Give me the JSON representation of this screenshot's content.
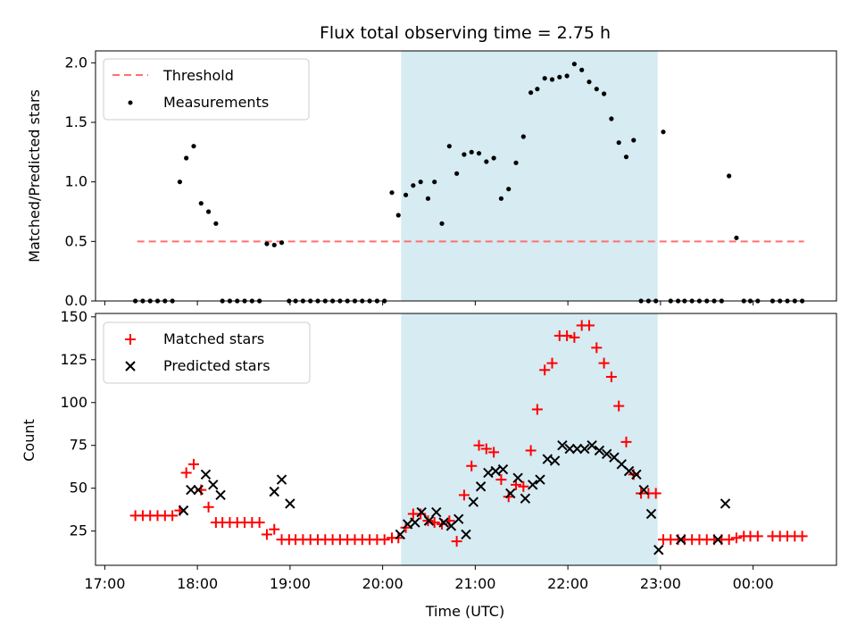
{
  "chart_data": {
    "title": "Flux total observing time = 2.75 h",
    "x_axis": {
      "label": "Time (UTC)",
      "unit": "hours since 17:00 (axis labels show clock time)",
      "range": [
        -0.1,
        7.9
      ],
      "ticks": [
        0,
        1,
        2,
        3,
        4,
        5,
        6,
        7
      ],
      "tick_labels": [
        "17:00",
        "18:00",
        "19:00",
        "20:00",
        "21:00",
        "22:00",
        "23:00",
        "00:00"
      ]
    },
    "shaded_interval": {
      "start": 3.2,
      "end": 5.97,
      "color": "#add8e6"
    },
    "panels": [
      {
        "type": "scatter",
        "ylabel": "Matched/Predicted stars",
        "ylim": [
          0,
          2.1
        ],
        "yticks": [
          0.0,
          0.5,
          1.0,
          1.5,
          2.0
        ],
        "ytick_labels": [
          "0.0",
          "0.5",
          "1.0",
          "1.5",
          "2.0"
        ],
        "legend": {
          "position": "upper left",
          "entries": [
            "Threshold",
            "Measurements"
          ]
        },
        "series": [
          {
            "name": "Threshold",
            "kind": "dashed-line",
            "color": "#ff6f6f",
            "x": [
              0.35,
              7.55
            ],
            "y": [
              0.5,
              0.5
            ]
          },
          {
            "name": "Measurements",
            "kind": "dot",
            "color": "#000000",
            "x": [
              0.33,
              0.41,
              0.49,
              0.57,
              0.65,
              0.73,
              0.81,
              0.88,
              0.96,
              1.04,
              1.12,
              1.2,
              1.27,
              1.35,
              1.43,
              1.51,
              1.59,
              1.67,
              1.75,
              1.83,
              1.91,
              1.99,
              2.06,
              2.14,
              2.22,
              2.3,
              2.38,
              2.46,
              2.54,
              2.62,
              2.7,
              2.78,
              2.86,
              2.94,
              3.02,
              3.1,
              3.17,
              3.25,
              3.33,
              3.41,
              3.49,
              3.56,
              3.64,
              3.72,
              3.8,
              3.88,
              3.96,
              4.04,
              4.12,
              4.2,
              4.28,
              4.36,
              4.44,
              4.52,
              4.6,
              4.67,
              4.75,
              4.83,
              4.91,
              4.99,
              5.07,
              5.15,
              5.23,
              5.31,
              5.39,
              5.47,
              5.55,
              5.63,
              5.71,
              5.79,
              5.87,
              5.95,
              6.03,
              6.11,
              6.19,
              6.26,
              6.34,
              6.42,
              6.5,
              6.58,
              6.66,
              6.74,
              6.82,
              6.9,
              6.97,
              7.05,
              7.21,
              7.29,
              7.37,
              7.45,
              7.53
            ],
            "y": [
              0,
              0,
              0,
              0,
              0,
              0,
              1.0,
              1.2,
              1.3,
              0.82,
              0.75,
              0.65,
              0,
              0,
              0,
              0,
              0,
              0,
              0.48,
              0.47,
              0.49,
              0,
              0,
              0,
              0,
              0,
              0,
              0,
              0,
              0,
              0,
              0,
              0,
              0,
              0,
              0.91,
              0.72,
              0.89,
              0.97,
              1.0,
              0.86,
              1.0,
              0.65,
              1.3,
              1.07,
              1.23,
              1.25,
              1.24,
              1.17,
              1.2,
              0.86,
              0.94,
              1.16,
              1.38,
              1.75,
              1.78,
              1.87,
              1.86,
              1.88,
              1.89,
              1.99,
              1.94,
              1.84,
              1.78,
              1.74,
              1.53,
              1.33,
              1.21,
              1.35,
              0,
              0,
              0,
              1.42,
              0,
              0,
              0,
              0,
              0,
              0,
              0,
              0,
              1.05,
              0.53,
              0,
              0,
              0,
              0,
              0,
              0,
              0,
              0
            ]
          }
        ]
      },
      {
        "type": "scatter",
        "ylabel": "Count",
        "ylim": [
          5,
          152
        ],
        "yticks": [
          25,
          50,
          75,
          100,
          125,
          150
        ],
        "ytick_labels": [
          "25",
          "50",
          "75",
          "100",
          "125",
          "150"
        ],
        "legend": {
          "position": "upper left",
          "entries": [
            "Matched stars",
            "Predicted stars"
          ]
        },
        "series": [
          {
            "name": "Matched stars",
            "marker": "+",
            "color": "#ff0000",
            "x": [
              0.33,
              0.41,
              0.49,
              0.57,
              0.65,
              0.73,
              0.81,
              0.88,
              0.96,
              1.04,
              1.12,
              1.2,
              1.27,
              1.35,
              1.43,
              1.51,
              1.59,
              1.67,
              1.75,
              1.83,
              1.91,
              1.99,
              2.06,
              2.14,
              2.22,
              2.3,
              2.38,
              2.46,
              2.54,
              2.62,
              2.7,
              2.78,
              2.86,
              2.94,
              3.02,
              3.1,
              3.17,
              3.25,
              3.33,
              3.41,
              3.49,
              3.56,
              3.64,
              3.72,
              3.8,
              3.88,
              3.96,
              4.04,
              4.12,
              4.2,
              4.28,
              4.36,
              4.44,
              4.52,
              4.6,
              4.67,
              4.75,
              4.83,
              4.91,
              4.99,
              5.07,
              5.15,
              5.23,
              5.31,
              5.39,
              5.47,
              5.55,
              5.63,
              5.71,
              5.79,
              5.87,
              5.95,
              6.03,
              6.11,
              6.19,
              6.26,
              6.34,
              6.42,
              6.5,
              6.58,
              6.66,
              6.74,
              6.82,
              6.9,
              6.97,
              7.05,
              7.21,
              7.29,
              7.37,
              7.45,
              7.53
            ],
            "y": [
              34,
              34,
              34,
              34,
              34,
              34,
              37,
              59,
              64,
              49,
              39,
              30,
              30,
              30,
              30,
              30,
              30,
              30,
              23,
              26,
              20,
              20,
              20,
              20,
              20,
              20,
              20,
              20,
              20,
              20,
              20,
              20,
              20,
              20,
              20,
              21,
              21,
              27,
              35,
              35,
              31,
              30,
              29,
              31,
              19,
              46,
              63,
              75,
              73,
              71,
              55,
              45,
              52,
              51,
              72,
              96,
              119,
              123,
              139,
              139,
              138,
              145,
              145,
              132,
              123,
              115,
              98,
              77,
              58,
              47,
              47,
              47,
              20,
              20,
              20,
              20,
              20,
              20,
              20,
              20,
              20,
              20,
              21,
              22,
              22,
              22,
              22,
              22,
              22,
              22,
              22
            ]
          },
          {
            "name": "Predicted stars",
            "marker": "x",
            "color": "#000000",
            "x": [
              0.85,
              0.93,
              1.01,
              1.09,
              1.17,
              1.25,
              1.83,
              1.91,
              2.0,
              3.19,
              3.27,
              3.35,
              3.42,
              3.5,
              3.58,
              3.66,
              3.74,
              3.82,
              3.9,
              3.98,
              4.06,
              4.14,
              4.22,
              4.3,
              4.38,
              4.46,
              4.54,
              4.62,
              4.7,
              4.78,
              4.86,
              4.94,
              5.02,
              5.1,
              5.18,
              5.26,
              5.34,
              5.42,
              5.5,
              5.58,
              5.66,
              5.74,
              5.82,
              5.9,
              5.98,
              6.22,
              6.62,
              6.7
            ],
            "y": [
              37,
              49,
              49,
              58,
              52,
              46,
              48,
              55,
              41,
              23,
              29,
              30,
              36,
              31,
              36,
              30,
              28,
              32,
              23,
              42,
              51,
              59,
              60,
              61,
              47,
              56,
              44,
              52,
              55,
              67,
              66,
              75,
              73,
              73,
              73,
              75,
              72,
              70,
              68,
              64,
              60,
              58,
              49,
              35,
              14,
              20,
              20,
              41
            ]
          }
        ]
      }
    ]
  }
}
